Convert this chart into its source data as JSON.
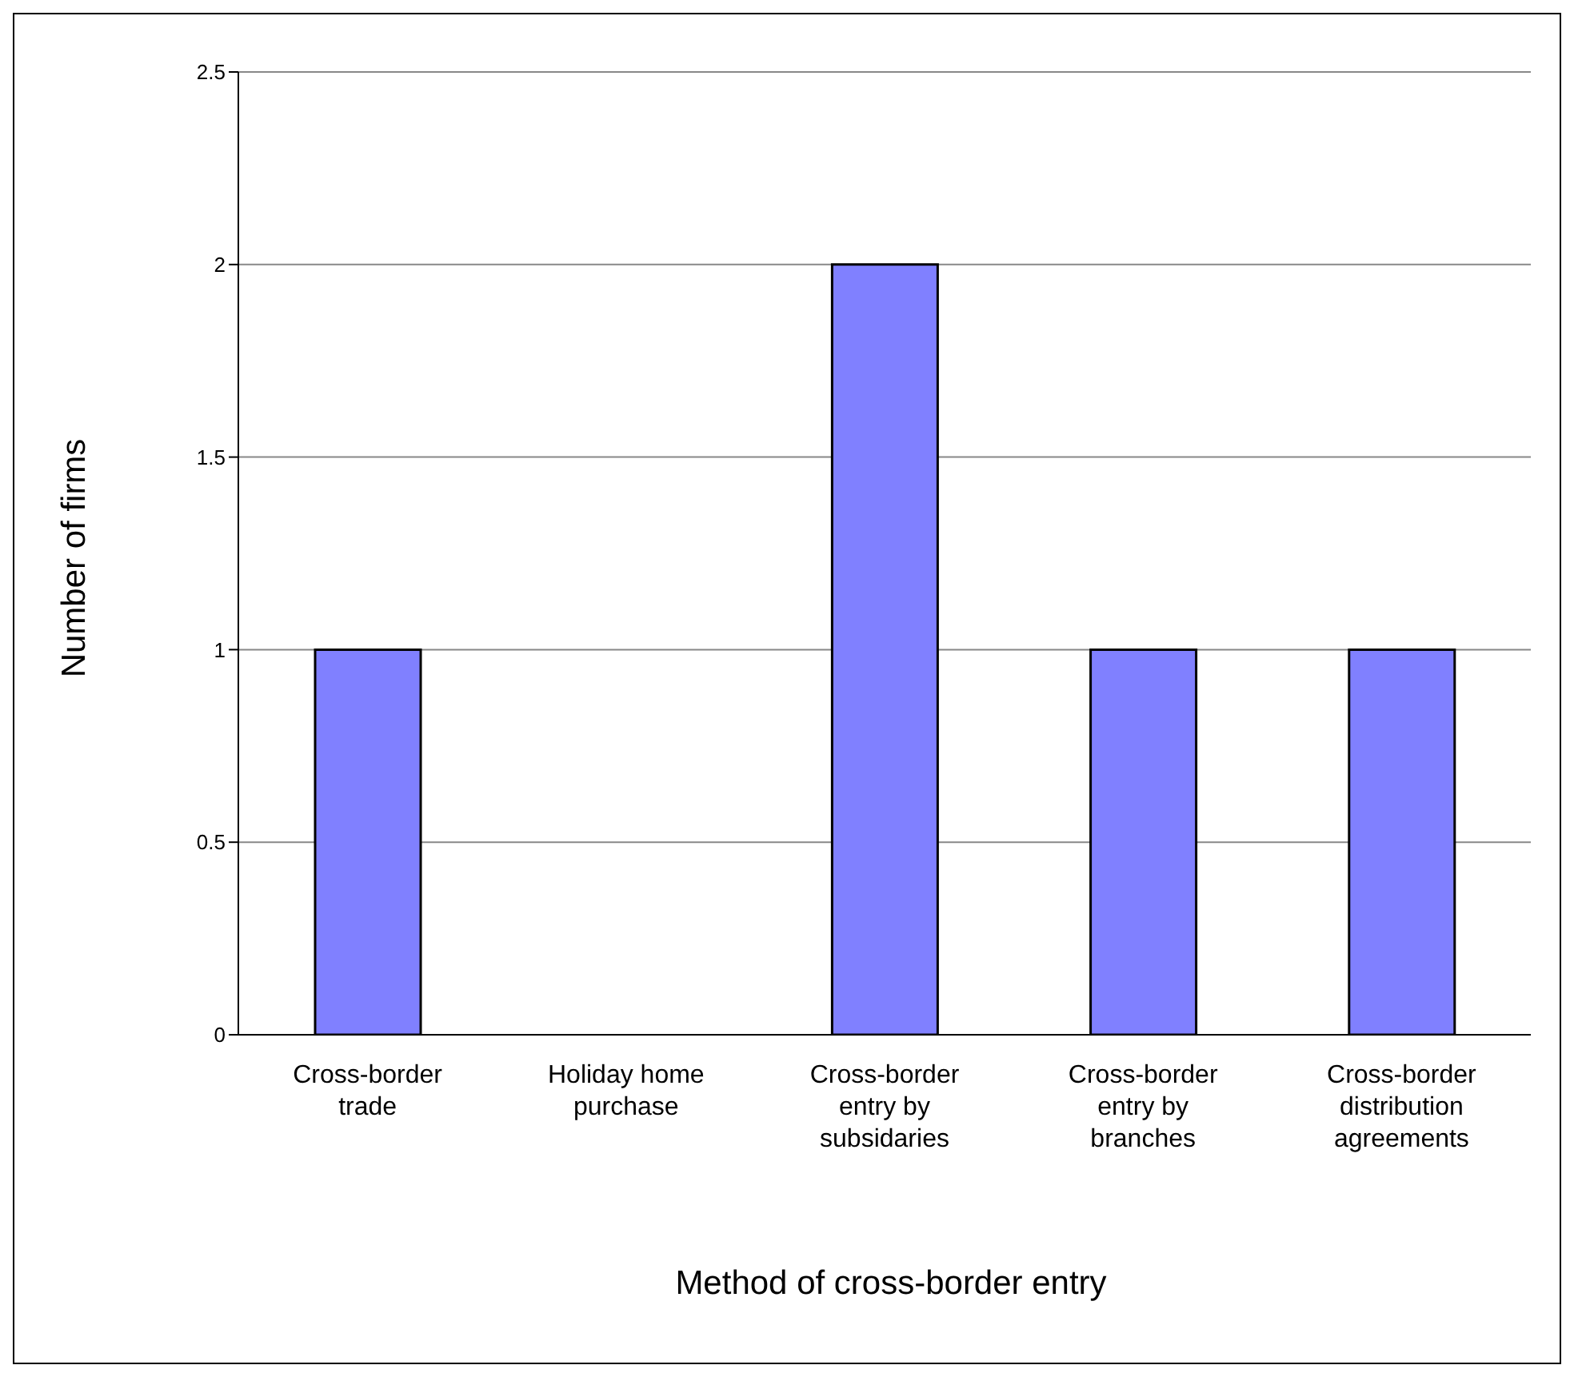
{
  "chart_data": {
    "type": "bar",
    "xlabel": "Method of cross-border entry",
    "ylabel": "Number of firms",
    "categories": [
      "Cross-border trade",
      "Holiday home purchase",
      "Cross-border entry by subsidaries",
      "Cross-border entry by branches",
      "Cross-border distribution agreements"
    ],
    "values": [
      1,
      0,
      2,
      1,
      1
    ],
    "color": "#8080ff",
    "ylim": [
      0,
      2.5
    ],
    "yticks": [
      0,
      0.5,
      1,
      1.5,
      2,
      2.5
    ],
    "grid": "y"
  }
}
